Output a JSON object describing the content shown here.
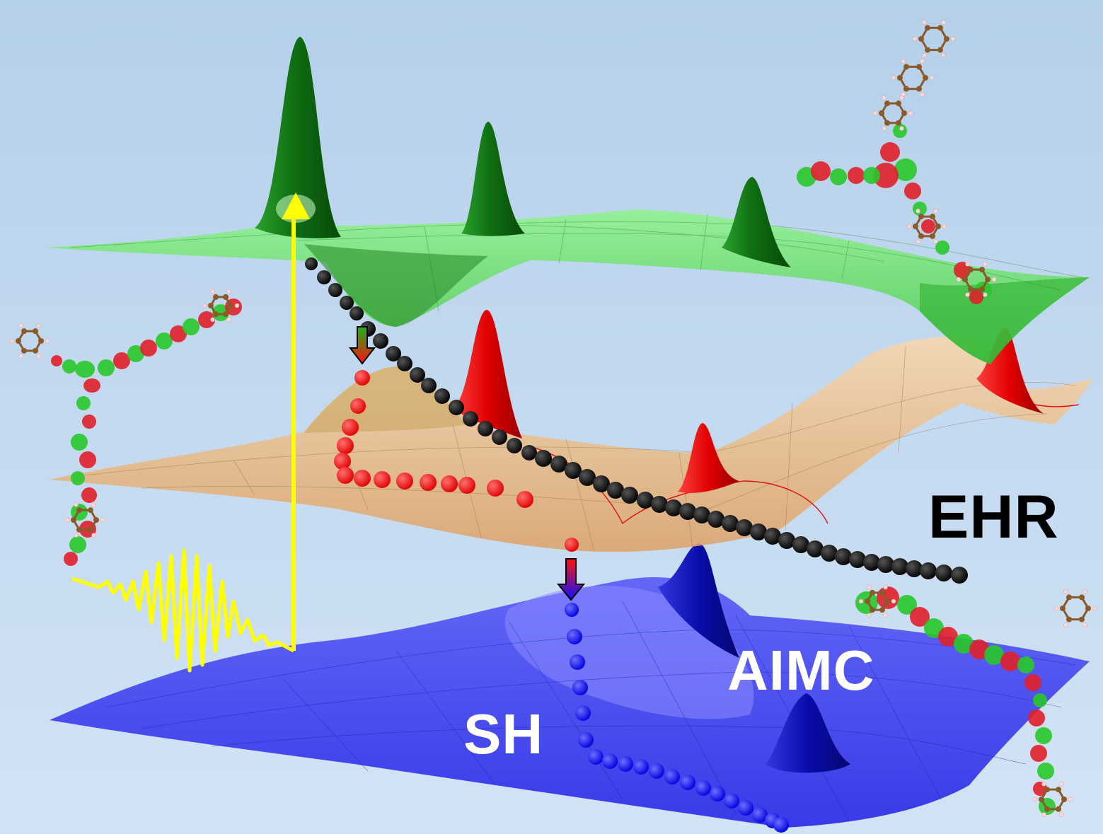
{
  "labels": {
    "ehr": "EHR",
    "aimc": "AIMC",
    "sh": "SH"
  },
  "colors": {
    "background_top": "#b9d3ec",
    "background_bottom": "#cfe1f4",
    "excited_surface": "#6fe86a",
    "intermediate_surface": "#f2c38f",
    "ground_surface": "#3a3cf0",
    "excited_wavepacket": "#0f7a14",
    "intermediate_wavepacket": "#e10a0a",
    "ground_wavepacket": "#0c0cb0",
    "ehr_trajectory": "#000000",
    "sh_trajectory_upper": "#ff1010",
    "sh_trajectory_lower": "#1010ff",
    "excitation_pulse": "#ffff00",
    "orbital_positive": "#e0202a",
    "orbital_negative": "#28c82a",
    "carbon_atom": "#8a5a2b",
    "hydrogen_atom": "#ffd8d8"
  },
  "icons": [
    "yellow-laser-pulse-icon",
    "excitation-arrow-icon",
    "hop-arrow-green-red-icon",
    "hop-arrow-red-blue-icon",
    "molecule-icon"
  ]
}
